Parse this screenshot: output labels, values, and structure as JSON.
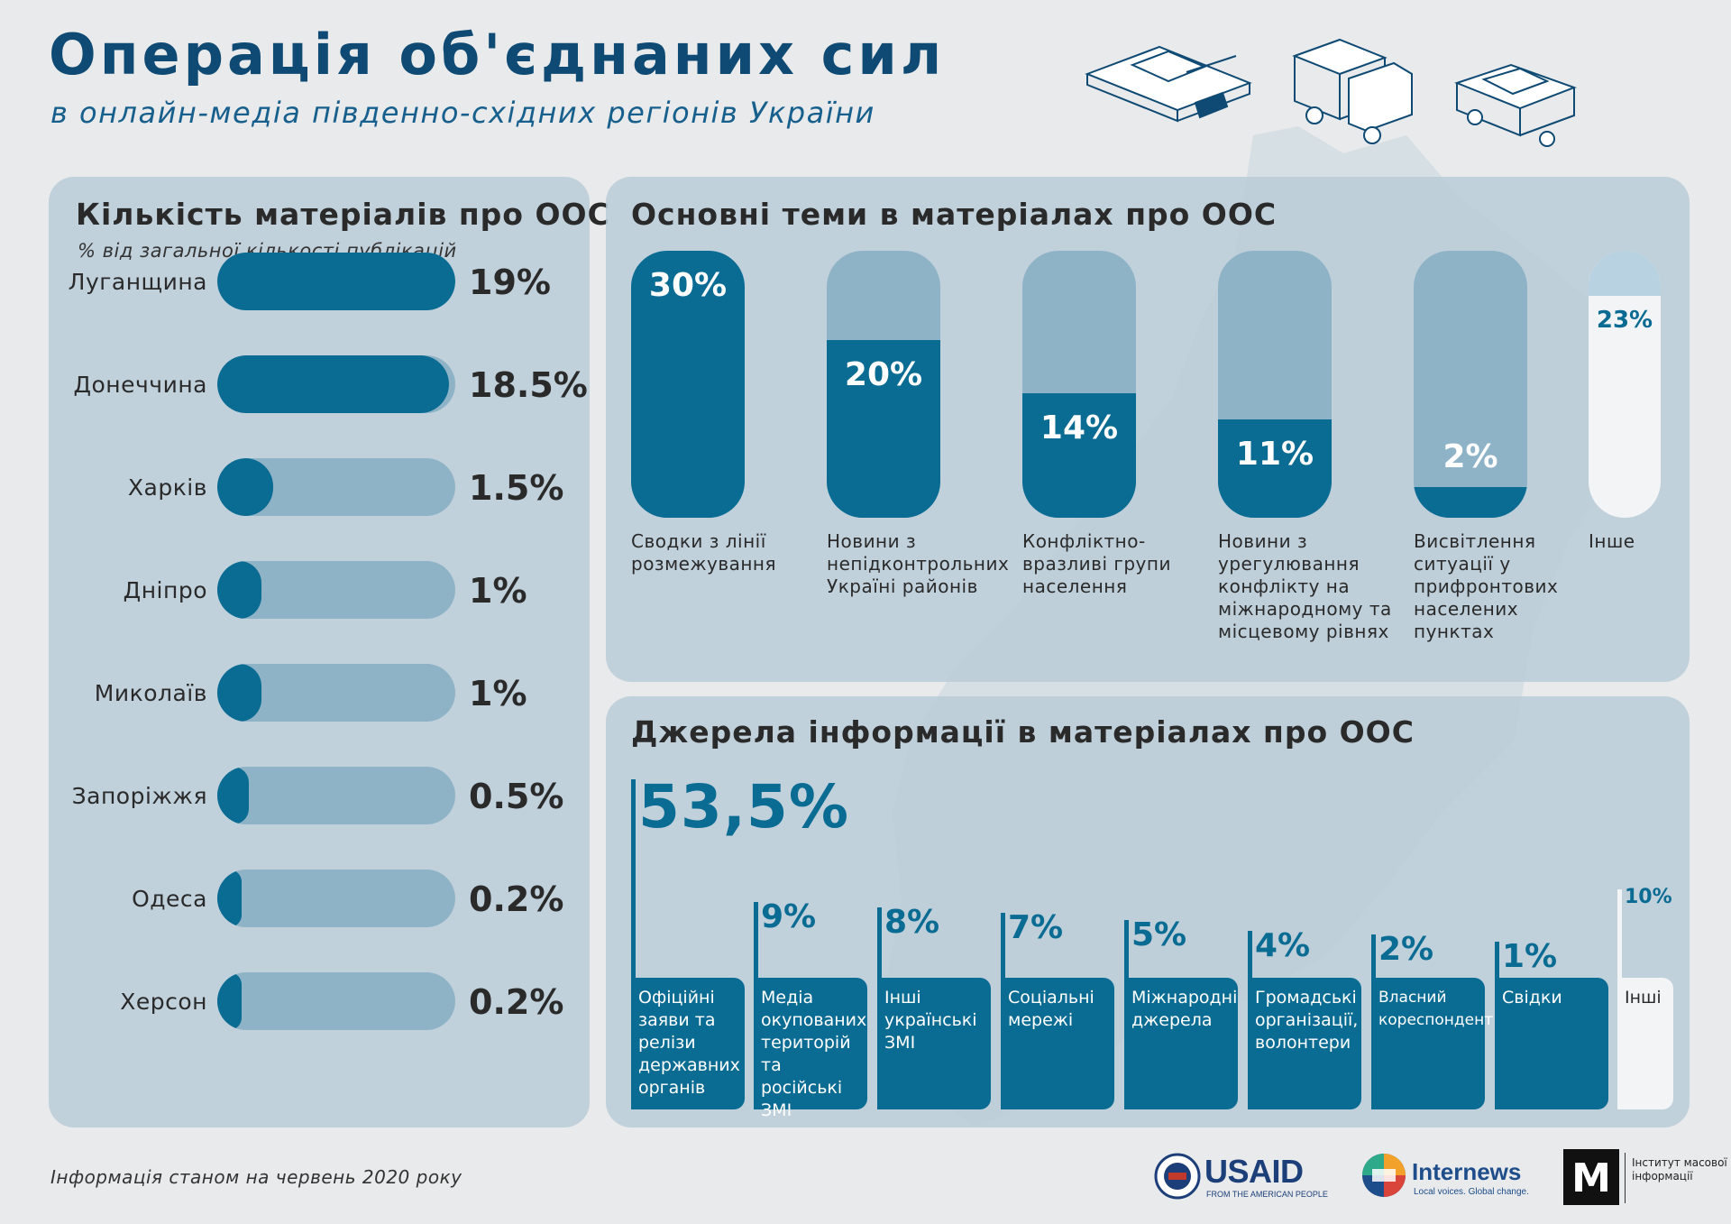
{
  "title": "Операція об'єднаних сил",
  "subtitle": "в онлайн-медіа південно-східних регіонів України",
  "footnote": "Інформація станом на червень 2020 року",
  "colors": {
    "primary": "#0a6b93",
    "light": "#8fb3c6",
    "panel": "#b8ccd8",
    "title": "#0e4a73"
  },
  "icons": [
    "tank-icon",
    "truck-icon",
    "armored-car-icon"
  ],
  "regions_panel": {
    "title": "Кількість матеріалів про ООС",
    "subtitle": "% від загальної кількості публікацій"
  },
  "topics_panel": {
    "title": "Основні теми в матеріалах про ООС"
  },
  "sources_panel": {
    "title": "Джерела інформації в матеріалах про ООС"
  },
  "chart_data": [
    {
      "type": "bar",
      "title": "Кількість матеріалів про ООС",
      "subtitle": "% від загальної кількості публікацій",
      "categories": [
        "Луганщина",
        "Донеччина",
        "Харків",
        "Дніпро",
        "Миколаїв",
        "Запоріжжя",
        "Одеса",
        "Херсон"
      ],
      "values": [
        19,
        18.5,
        1.5,
        1,
        1,
        0.5,
        0.2,
        0.2
      ],
      "labels": [
        "19%",
        "18.5%",
        "1.5%",
        "1%",
        "1%",
        "0.5%",
        "0.2%",
        "0.2%"
      ],
      "xlim": [
        0,
        19
      ]
    },
    {
      "type": "bar",
      "title": "Основні теми в матеріалах про ООС",
      "categories": [
        "Сводки з лінії розмежування",
        "Новини з непідконтрольних Україні районів",
        "Конфліктно-вразливі групи населення",
        "Новини з урегулювання конфлікту на міжнародному та місцевому рівнях",
        "Висвітлення ситуації у прифронтових населених пунктах",
        "Інше"
      ],
      "values": [
        30,
        20,
        14,
        11,
        2,
        23
      ],
      "labels": [
        "30%",
        "20%",
        "14%",
        "11%",
        "2%",
        "23%"
      ],
      "ylim": [
        0,
        30
      ]
    },
    {
      "type": "bar",
      "title": "Джерела інформації в матеріалах про ООС",
      "categories": [
        "Офіційні заяви та релізи державних органів",
        "Медіа окупованих територій та російські ЗМІ",
        "Інші українські ЗМІ",
        "Соціальні мережі",
        "Міжнародні джерела",
        "Громадські організації, волонтери",
        "Власний кореспондент",
        "Свідки",
        "Інші"
      ],
      "values": [
        53.5,
        9,
        8,
        7,
        5,
        4,
        2,
        1,
        10
      ],
      "labels": [
        "53,5%",
        "9%",
        "8%",
        "7%",
        "5%",
        "4%",
        "2%",
        "1%",
        "10%"
      ]
    }
  ],
  "logos": {
    "usaid": "USAID",
    "usaid_sub": "FROM THE AMERICAN PEOPLE",
    "internews": "Internews",
    "internews_sub": "Local voices. Global change.",
    "imi_mark": "М",
    "imi_text": "Інститут масової інформації"
  }
}
